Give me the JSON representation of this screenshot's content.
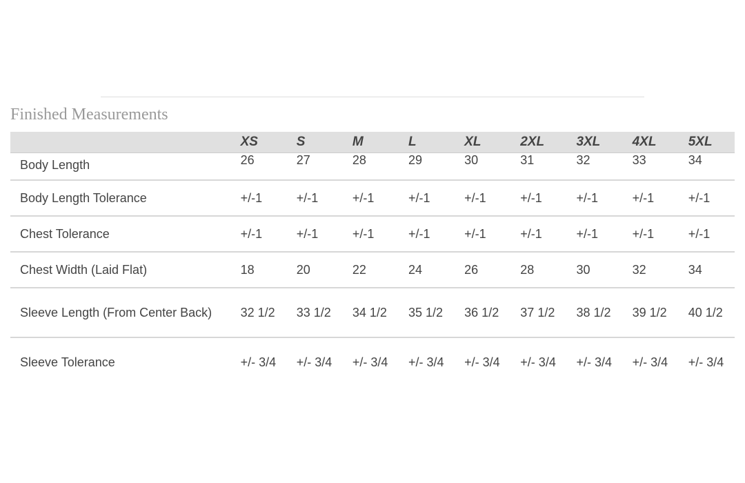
{
  "title": "Finished Measurements",
  "sizes": [
    "XS",
    "S",
    "M",
    "L",
    "XL",
    "2XL",
    "3XL",
    "4XL",
    "5XL"
  ],
  "rows": [
    {
      "label": "Body Length",
      "values": [
        "26",
        "27",
        "28",
        "29",
        "30",
        "31",
        "32",
        "33",
        "34"
      ]
    },
    {
      "label": "Body Length Tolerance",
      "values": [
        "+/-1",
        "+/-1",
        "+/-1",
        "+/-1",
        "+/-1",
        "+/-1",
        "+/-1",
        "+/-1",
        "+/-1"
      ]
    },
    {
      "label": "Chest Tolerance",
      "values": [
        "+/-1",
        "+/-1",
        "+/-1",
        "+/-1",
        "+/-1",
        "+/-1",
        "+/-1",
        "+/-1",
        "+/-1"
      ]
    },
    {
      "label": "Chest Width (Laid Flat)",
      "values": [
        "18",
        "20",
        "22",
        "24",
        "26",
        "28",
        "30",
        "32",
        "34"
      ]
    },
    {
      "label": "Sleeve Length (From Center Back)",
      "values": [
        "32 1/2",
        "33 1/2",
        "34 1/2",
        "35 1/2",
        "36 1/2",
        "37 1/2",
        "38 1/2",
        "39 1/2",
        "40 1/2"
      ]
    },
    {
      "label": "Sleeve Tolerance",
      "values": [
        "+/- 3/4",
        "+/- 3/4",
        "+/- 3/4",
        "+/- 3/4",
        "+/- 3/4",
        "+/- 3/4",
        "+/- 3/4",
        "+/- 3/4",
        "+/- 3/4"
      ]
    }
  ]
}
